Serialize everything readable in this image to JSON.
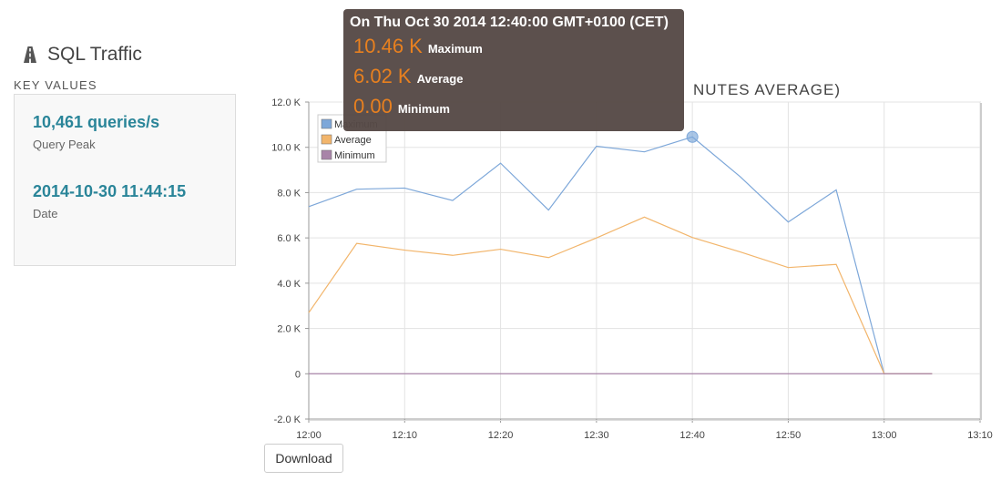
{
  "page": {
    "title": "SQL Traffic",
    "icon": "road-icon",
    "section_label": "KEY VALUES"
  },
  "key_values": {
    "peak_value": "10,461 queries/s",
    "peak_label": "Query Peak",
    "date_value": "2014-10-30 11:44:15",
    "date_label": "Date"
  },
  "tooltip": {
    "header": "On Thu Oct 30 2014 12:40:00 GMT+0100 (CET)",
    "rows": [
      {
        "value": "10.46 K",
        "name": "Maximum"
      },
      {
        "value": "6.02 K",
        "name": "Average"
      },
      {
        "value": "0.00",
        "name": "Minimum"
      }
    ]
  },
  "download_label": "Download",
  "chart_data": {
    "type": "line",
    "title": "NUTES AVERAGE)",
    "x_ticks": [
      "12:00",
      "12:10",
      "12:20",
      "12:30",
      "12:40",
      "12:50",
      "13:00",
      "13:10"
    ],
    "y_ticks": [
      "-2.0 K",
      "0",
      "2.0 K",
      "4.0 K",
      "6.0 K",
      "8.0 K",
      "10.0 K",
      "12.0 K"
    ],
    "xlim": [
      0,
      70
    ],
    "ylim": [
      -2000,
      12000
    ],
    "grid": true,
    "legend_position": "top-left",
    "highlight": {
      "series": 0,
      "x": 40
    },
    "series": [
      {
        "name": "Maximum",
        "color": "#7da7d9",
        "x": [
          0,
          5,
          10,
          15,
          20,
          25,
          30,
          35,
          40,
          45,
          50,
          55,
          60,
          65
        ],
        "values": [
          7380,
          8150,
          8200,
          7650,
          9300,
          7230,
          10050,
          9800,
          10460,
          8700,
          6700,
          8120,
          0,
          0
        ]
      },
      {
        "name": "Average",
        "color": "#f2b56b",
        "x": [
          0,
          5,
          10,
          15,
          20,
          25,
          30,
          35,
          40,
          45,
          50,
          55,
          60,
          65
        ],
        "values": [
          2700,
          5760,
          5460,
          5230,
          5500,
          5130,
          6000,
          6920,
          6020,
          5380,
          4690,
          4830,
          0,
          0
        ]
      },
      {
        "name": "Minimum",
        "color": "#a884a8",
        "x": [
          0,
          5,
          10,
          15,
          20,
          25,
          30,
          35,
          40,
          45,
          50,
          55,
          60,
          65
        ],
        "values": [
          0,
          0,
          0,
          0,
          0,
          0,
          0,
          0,
          0,
          0,
          0,
          0,
          0,
          0
        ]
      }
    ]
  }
}
